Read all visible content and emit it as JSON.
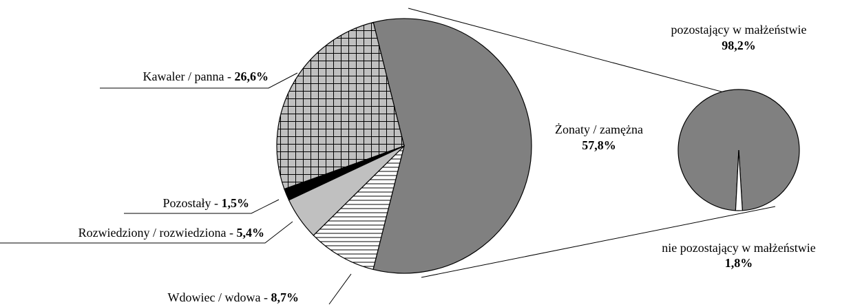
{
  "chart_data": [
    {
      "type": "pie",
      "categories": [
        "Żonaty / zamężna",
        "Wdowiec / wdowa",
        "Rozwiedziony / rozwiedziona",
        "Pozostały",
        "Kawaler / panna"
      ],
      "values": [
        57.8,
        8.7,
        5.4,
        1.5,
        26.6
      ],
      "value_labels": [
        "57,8%",
        "8,7%",
        "5,4%",
        "1,5%",
        "26,6%"
      ],
      "colors": [
        "#808080",
        "#ffffff",
        "#c0c0c0",
        "#000000",
        "#c0c0c0"
      ],
      "patterns": [
        "none",
        "horizontal",
        "none",
        "none",
        "grid"
      ],
      "label_separator": " - "
    },
    {
      "type": "pie",
      "categories": [
        "pozostający w małżeństwie",
        "nie pozostający w małżeństwie"
      ],
      "values": [
        98.2,
        1.8
      ],
      "value_labels": [
        "98,2%",
        "1,8%"
      ],
      "colors": [
        "#808080",
        "#ffffff"
      ],
      "patterns": [
        "none",
        "none"
      ]
    }
  ]
}
